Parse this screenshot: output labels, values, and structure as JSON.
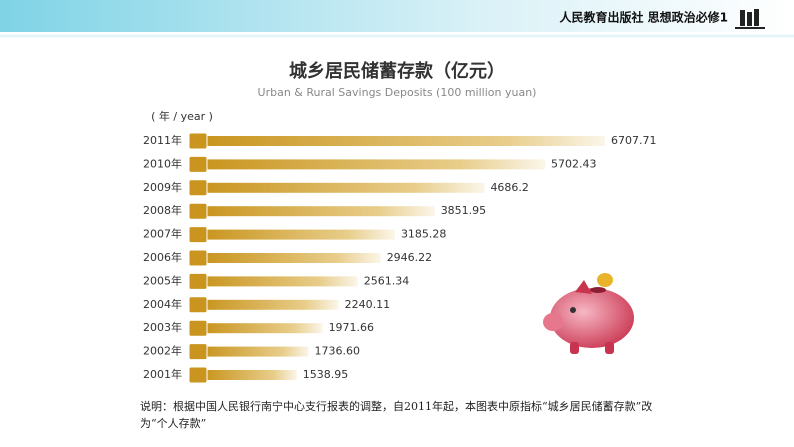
{
  "header": {
    "title": "人民教育出版社 思想政治必修1"
  },
  "chart_data": {
    "type": "hbar",
    "title": "城乡居民储蓄存款（亿元）",
    "subtitle": "Urban & Rural Savings Deposits (100 million yuan)",
    "y_label": "( 年 / year )",
    "categories": [
      "2011年",
      "2010年",
      "2009年",
      "2008年",
      "2007年",
      "2006年",
      "2005年",
      "2004年",
      "2003年",
      "2002年",
      "2001年"
    ],
    "values": [
      6707.71,
      5702.43,
      4686.2,
      3851.95,
      3185.28,
      2946.22,
      2561.34,
      2240.11,
      1971.66,
      1736.6,
      1538.95
    ],
    "value_labels": [
      "6707.71",
      "5702.43",
      "4686.2",
      "3851.95",
      "3185.28",
      "2946.22",
      "2561.34",
      "2240.11",
      "1971.66",
      "1736.60",
      "1538.95"
    ],
    "color": "#c9951f",
    "note": "说明：根据中国人民银行南宁中心支行报表的调整，自2011年起，本图表中原指标“城乡居民储蓄存款”改为“个人存款”"
  }
}
